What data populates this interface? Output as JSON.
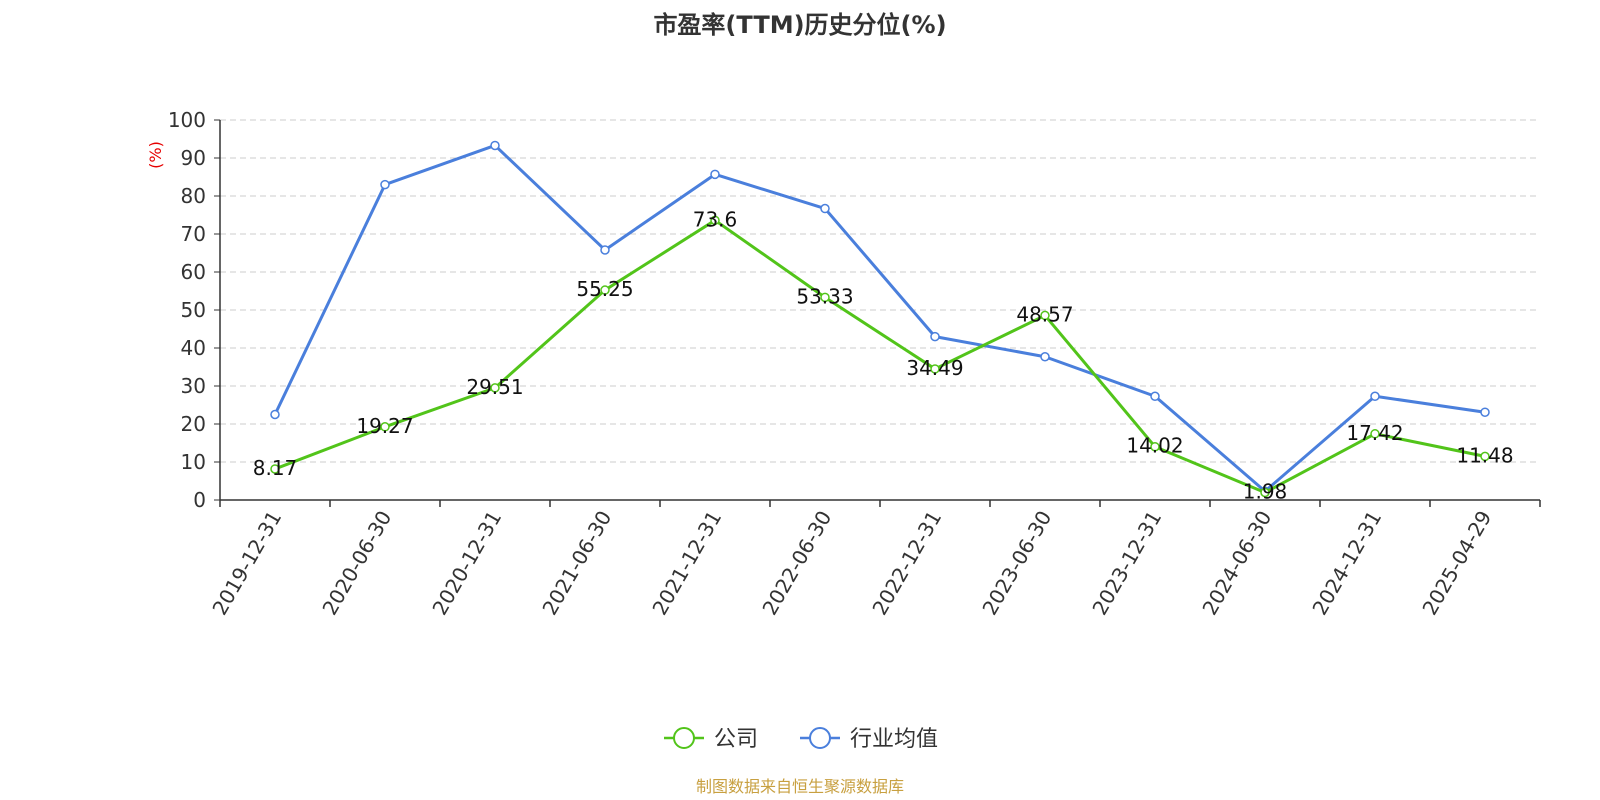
{
  "chart_data": {
    "type": "line",
    "title": "市盈率(TTM)历史分位(%)",
    "ylabel": "(%)",
    "ylim": [
      0,
      100
    ],
    "yticks": [
      0,
      10,
      20,
      30,
      40,
      50,
      60,
      70,
      80,
      90,
      100
    ],
    "grid": true,
    "legend_position": "bottom",
    "categories": [
      "2019-12-31",
      "2020-06-30",
      "2020-12-31",
      "2021-06-30",
      "2021-12-31",
      "2022-06-30",
      "2022-12-31",
      "2023-06-30",
      "2023-12-31",
      "2024-06-30",
      "2024-12-31",
      "2025-04-29"
    ],
    "series": [
      {
        "name": "公司",
        "color": "#52c41a",
        "show_labels": true,
        "values": [
          8.17,
          19.27,
          29.51,
          55.25,
          73.6,
          53.33,
          34.49,
          48.57,
          14.02,
          1.98,
          17.42,
          11.48
        ]
      },
      {
        "name": "行业均值",
        "color": "#4a7fdc",
        "show_labels": false,
        "values": [
          22.5,
          83,
          93.3,
          65.8,
          85.7,
          76.7,
          43,
          37.7,
          27.3,
          2.3,
          27.3,
          23.1
        ]
      }
    ],
    "source_note": "制图数据来自恒生聚源数据库"
  }
}
